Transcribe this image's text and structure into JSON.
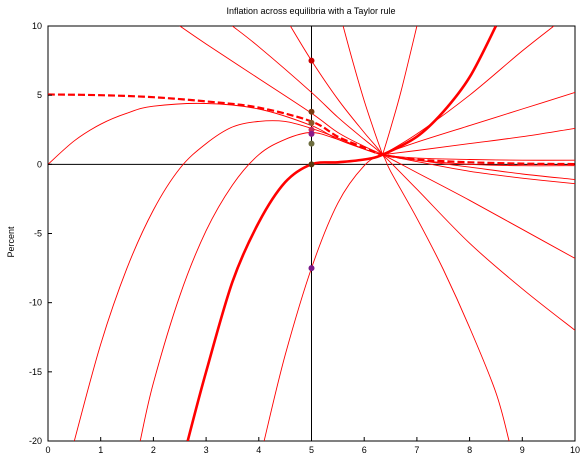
{
  "chart_data": {
    "type": "line",
    "title": "Inflation across equilibria with a Taylor rule",
    "xlabel": "",
    "ylabel": "Percent",
    "xlim": [
      0,
      10
    ],
    "ylim": [
      -20,
      10
    ],
    "x_ticks": [
      0,
      1,
      2,
      3,
      4,
      5,
      6,
      7,
      8,
      9,
      10
    ],
    "y_ticks": [
      -20,
      -15,
      -10,
      -5,
      0,
      5,
      10
    ],
    "grid": false,
    "legend": "none",
    "crossing_point": {
      "x": 6.35,
      "y": 0.7
    },
    "policy_change_x": 5,
    "colors": {
      "curves": "#ff0000",
      "axes": "#000000"
    },
    "series": [
      {
        "style": "dashed-thick",
        "color": "#ff0000",
        "points": [
          [
            0,
            5.05
          ],
          [
            1,
            5.0
          ],
          [
            2,
            4.85
          ],
          [
            3,
            4.55
          ],
          [
            4,
            4.1
          ],
          [
            5,
            3.1
          ],
          [
            5.5,
            2.0
          ],
          [
            6,
            1.2
          ],
          [
            6.35,
            0.7
          ],
          [
            7,
            0.35
          ],
          [
            8,
            0.15
          ],
          [
            9,
            0.05
          ],
          [
            10,
            0.02
          ]
        ]
      },
      {
        "style": "thick",
        "color": "#ff0000",
        "points": [
          [
            2.65,
            -20
          ],
          [
            3,
            -15
          ],
          [
            3.5,
            -8.5
          ],
          [
            4,
            -4.2
          ],
          [
            4.5,
            -1.3
          ],
          [
            5,
            0
          ],
          [
            5.5,
            0.15
          ],
          [
            6,
            0.35
          ],
          [
            6.35,
            0.7
          ],
          [
            7,
            2.0
          ],
          [
            7.5,
            3.8
          ],
          [
            8,
            6.3
          ],
          [
            8.5,
            10.0
          ]
        ]
      },
      {
        "style": "thin",
        "color": "#ff0000",
        "points": [
          [
            0,
            0
          ],
          [
            0.5,
            1.7
          ],
          [
            1,
            2.9
          ],
          [
            1.5,
            3.7
          ],
          [
            2,
            4.2
          ],
          [
            3,
            4.4
          ],
          [
            4,
            4.0
          ],
          [
            5,
            2.8
          ],
          [
            5.5,
            1.8
          ],
          [
            6,
            1.1
          ],
          [
            6.35,
            0.7
          ],
          [
            7,
            0.45
          ],
          [
            8,
            0.35
          ],
          [
            9,
            0.3
          ],
          [
            10,
            0.3
          ]
        ]
      },
      {
        "style": "thin",
        "color": "#ff0000",
        "points": [
          [
            0.5,
            -20
          ],
          [
            1,
            -13
          ],
          [
            1.5,
            -7.5
          ],
          [
            2,
            -3.3
          ],
          [
            2.5,
            -0.3
          ],
          [
            3,
            1.5
          ],
          [
            3.5,
            2.7
          ],
          [
            4,
            3.1
          ],
          [
            4.5,
            3.1
          ],
          [
            5,
            2.6
          ],
          [
            5.5,
            1.9
          ],
          [
            6,
            1.1
          ],
          [
            6.35,
            0.7
          ],
          [
            7,
            0.3
          ],
          [
            8,
            0.0
          ],
          [
            9,
            -0.1
          ],
          [
            10,
            -0.1
          ]
        ]
      },
      {
        "style": "thin",
        "color": "#ff0000",
        "points": [
          [
            1.75,
            -20
          ],
          [
            2,
            -15.8
          ],
          [
            2.5,
            -9.5
          ],
          [
            3,
            -4.8
          ],
          [
            3.5,
            -1.5
          ],
          [
            4,
            0.7
          ],
          [
            4.5,
            1.8
          ],
          [
            5,
            2.3
          ],
          [
            5.5,
            1.8
          ],
          [
            6,
            1.1
          ],
          [
            6.35,
            0.7
          ],
          [
            7,
            0.2
          ],
          [
            8,
            -0.5
          ],
          [
            9,
            -1.0
          ],
          [
            10,
            -1.4
          ]
        ]
      },
      {
        "style": "thin",
        "color": "#ff0000",
        "points": [
          [
            4.1,
            -20
          ],
          [
            4.5,
            -13.8
          ],
          [
            5,
            -7.5
          ],
          [
            5.5,
            -2.8
          ],
          [
            6,
            -0.1
          ],
          [
            6.35,
            0.7
          ],
          [
            7,
            1.6
          ],
          [
            8,
            2.8
          ],
          [
            9,
            4.0
          ],
          [
            10,
            5.2
          ]
        ]
      },
      {
        "style": "thin",
        "color": "#ff0000",
        "points": [
          [
            2.5,
            10.0
          ],
          [
            3,
            8.7
          ],
          [
            4,
            6.2
          ],
          [
            5,
            3.7
          ],
          [
            5.5,
            2.3
          ],
          [
            6,
            1.3
          ],
          [
            6.35,
            0.7
          ],
          [
            7,
            -0.6
          ],
          [
            8,
            -2.6
          ],
          [
            9,
            -4.7
          ],
          [
            10,
            -6.8
          ]
        ]
      },
      {
        "style": "thin",
        "color": "#ff0000",
        "points": [
          [
            3.5,
            10.0
          ],
          [
            4,
            8.5
          ],
          [
            5,
            5.2
          ],
          [
            5.5,
            3.4
          ],
          [
            6,
            1.8
          ],
          [
            6.35,
            0.7
          ],
          [
            7,
            -1.8
          ],
          [
            8,
            -5.7
          ],
          [
            9,
            -9.0
          ],
          [
            10,
            -12.0
          ]
        ]
      },
      {
        "style": "thin",
        "color": "#ff0000",
        "points": [
          [
            4.6,
            10.0
          ],
          [
            5,
            7.5
          ],
          [
            5.5,
            4.7
          ],
          [
            6,
            2.3
          ],
          [
            6.35,
            0.7
          ],
          [
            6.5,
            -0.5
          ],
          [
            7,
            -3.9
          ],
          [
            7.5,
            -7.6
          ],
          [
            8,
            -11.8
          ],
          [
            8.5,
            -16.5
          ],
          [
            8.75,
            -20
          ]
        ]
      },
      {
        "style": "thin",
        "color": "#ff0000",
        "points": [
          [
            5.6,
            10.0
          ],
          [
            5.8,
            7.2
          ],
          [
            6,
            4.6
          ],
          [
            6.2,
            2.3
          ],
          [
            6.35,
            0.7
          ]
        ]
      },
      {
        "style": "thin",
        "color": "#ff0000",
        "points": [
          [
            6.35,
            0.7
          ],
          [
            6.5,
            2.6
          ],
          [
            6.7,
            5.3
          ],
          [
            7,
            10.0
          ]
        ]
      },
      {
        "style": "thin",
        "color": "#ff0000",
        "points": [
          [
            6.35,
            0.7
          ],
          [
            7,
            2.2
          ],
          [
            8,
            5.0
          ],
          [
            9,
            8.2
          ],
          [
            9.6,
            10.0
          ]
        ]
      },
      {
        "style": "thin",
        "color": "#ff0000",
        "points": [
          [
            6.35,
            0.7
          ],
          [
            7,
            1.0
          ],
          [
            8,
            1.5
          ],
          [
            9,
            2.0
          ],
          [
            10,
            2.6
          ]
        ]
      },
      {
        "style": "thin",
        "color": "#ff0000",
        "points": [
          [
            6.35,
            0.7
          ],
          [
            7,
            0.3
          ],
          [
            8,
            -0.2
          ],
          [
            9,
            -0.7
          ],
          [
            10,
            -1.1
          ]
        ]
      }
    ],
    "points": [
      {
        "x": 5,
        "y": 7.5,
        "color": "#cc0000"
      },
      {
        "x": 5,
        "y": 3.8,
        "color": "#7a3a10"
      },
      {
        "x": 5,
        "y": 3.0,
        "color": "#8b5a2b"
      },
      {
        "x": 5,
        "y": 2.5,
        "color": "#cc2a5c"
      },
      {
        "x": 5,
        "y": 2.2,
        "color": "#8a1a8a"
      },
      {
        "x": 5,
        "y": 1.5,
        "color": "#6e6e40"
      },
      {
        "x": 5,
        "y": 0.0,
        "color": "#5a3a10"
      },
      {
        "x": 5,
        "y": -7.5,
        "color": "#7a1a8a"
      }
    ]
  }
}
